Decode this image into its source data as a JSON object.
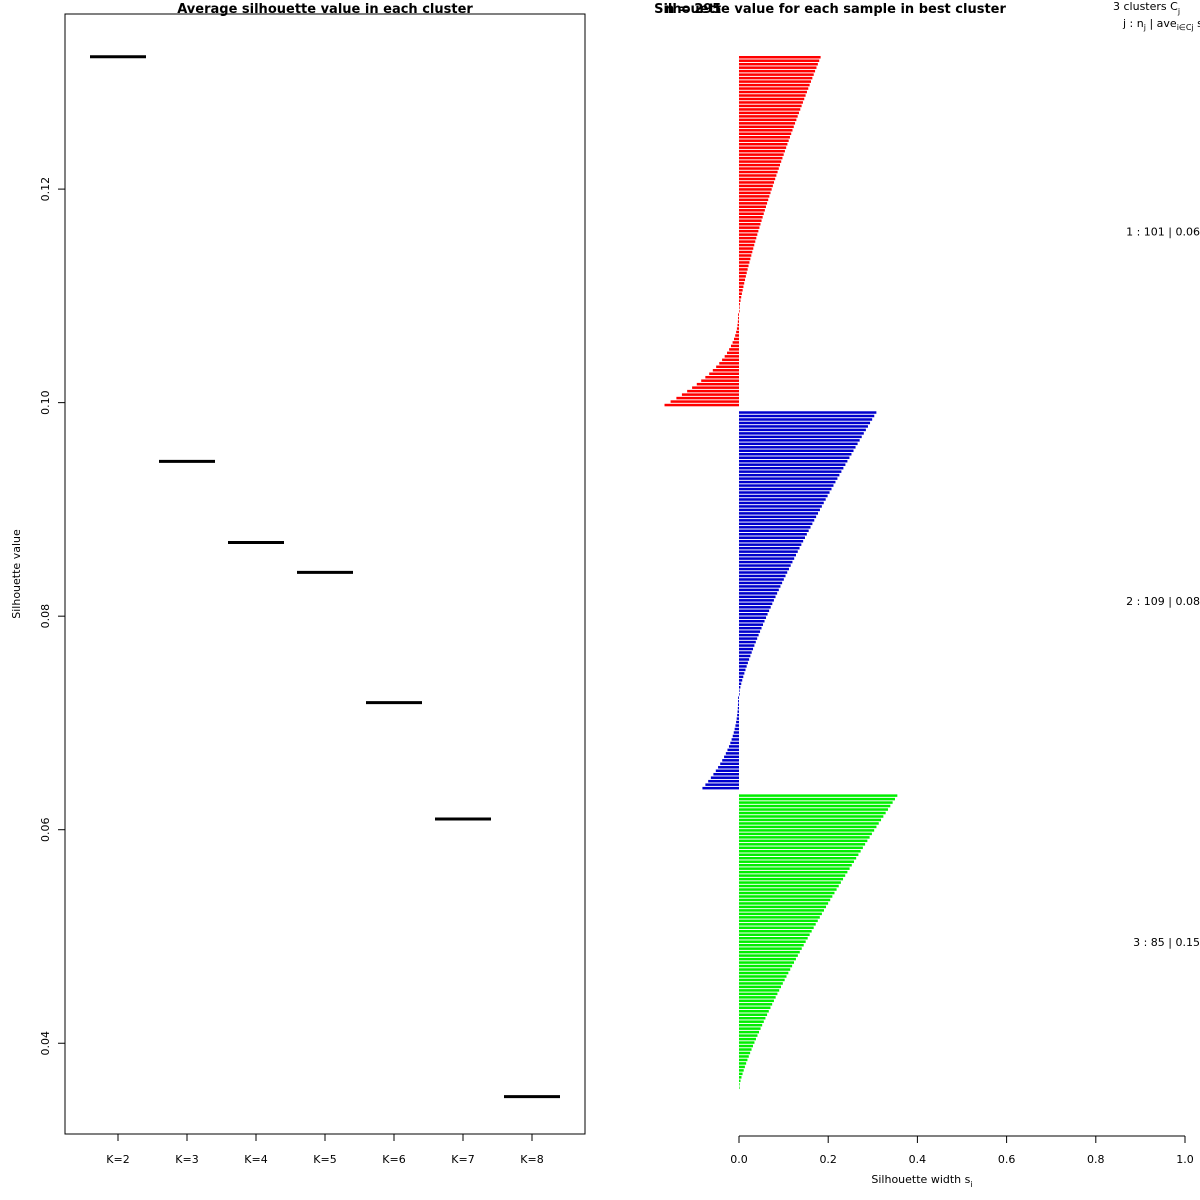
{
  "chart_data": [
    {
      "type": "scatter",
      "title": "Average silhouette value in each cluster",
      "xlabel": "",
      "ylabel": "Silhouette value",
      "categories": [
        "K=2",
        "K=3",
        "K=4",
        "K=5",
        "K=6",
        "K=7",
        "K=8"
      ],
      "values": [
        0.1324,
        0.0945,
        0.0869,
        0.0841,
        0.0719,
        0.061,
        0.035
      ],
      "ylim": [
        0.0315,
        0.1364
      ],
      "yticks": [
        "0.04",
        "0.06",
        "0.08",
        "0.10",
        "0.12"
      ],
      "grid": false,
      "legend": "none"
    },
    {
      "type": "bar",
      "orientation": "horizontal",
      "title": "Silhouette value for each sample in best cluster",
      "overlay_text": "n = 295",
      "xlabel": "Silhouette width s",
      "xlabel_subscript": "i",
      "xlim": [
        0,
        1
      ],
      "xticks": [
        "0.0",
        "0.2",
        "0.4",
        "0.6",
        "0.8",
        "1.0"
      ],
      "legend_header": {
        "line1": "3 clusters C",
        "line1_sub": "j",
        "line2": "j : n",
        "line2_sub": "j",
        "line2_rest": " | ave",
        "line2_rest_sub": "i∈Cj",
        "line2_end": " s"
      },
      "clusters": [
        {
          "label": "1 :  101  |  0.06",
          "color": "#ff0000",
          "n": 101,
          "max": 0.18,
          "min": -0.165,
          "positive": 74
        },
        {
          "label": "2 :  109  |  0.08",
          "color": "#0000cc",
          "n": 109,
          "max": 0.305,
          "min": -0.08,
          "positive": 82
        },
        {
          "label": "3 :  85  |  0.15",
          "color": "#00ee00",
          "n": 85,
          "max": 0.352,
          "min": 0.015,
          "positive": 85
        }
      ]
    }
  ]
}
